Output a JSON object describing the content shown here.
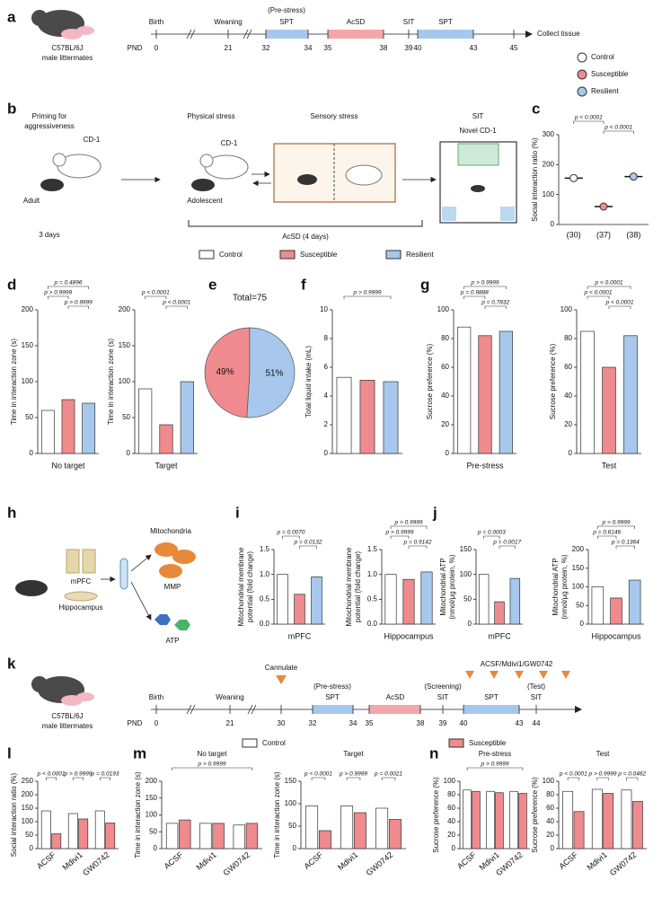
{
  "panel_labels": [
    "a",
    "b",
    "c",
    "d",
    "e",
    "f",
    "g",
    "h",
    "i",
    "j",
    "k",
    "l",
    "m",
    "n"
  ],
  "legend": [
    {
      "name": "Control",
      "color": "#ffffff"
    },
    {
      "name": "Susceptible",
      "color": "#ef8a8e"
    },
    {
      "name": "Resilient",
      "color": "#a7c8ec"
    }
  ],
  "timeline_a": {
    "strain": [
      "C57BL/6J",
      "male littermates"
    ],
    "pnd": "PND",
    "days": [
      "0",
      "21",
      "32",
      "34",
      "35",
      "38",
      "39",
      "40",
      "43",
      "45"
    ],
    "events": [
      "Birth",
      "Weaning",
      "SPT",
      "AcSD",
      "SIT",
      "SPT"
    ],
    "note": "(Pre-stress)",
    "end": "Collect tissue"
  },
  "diagram_b": {
    "priming": [
      "Priming for",
      "aggressiveness"
    ],
    "cd1": "CD-1",
    "adult": "Adult",
    "duration": "3 days",
    "physical": "Physical stress",
    "cd1_physical": "CD-1",
    "adolescent": "Adolescent",
    "sensory": "Sensory stress",
    "sit": "SIT",
    "novel": "Novel CD-1",
    "acsd": "AcSD (4 days)"
  },
  "diagram_h": {
    "mito": "Mitochondria",
    "mpfc": "mPFC",
    "hippo": "Hippocampus",
    "mmp": "MMP",
    "atp": "ATP"
  },
  "timeline_k": {
    "strain": [
      "C57BL/6J",
      "male littermates"
    ],
    "pnd": "PND",
    "days": [
      "0",
      "21",
      "30",
      "32",
      "34",
      "35",
      "38",
      "39",
      "40",
      "43",
      "44"
    ],
    "events": [
      "Birth",
      "Weaning",
      "SPT",
      "AcSD",
      "SIT",
      "SPT",
      "SIT"
    ],
    "notes": [
      "Cannulate",
      "(Pre-stress)",
      "(Screening)",
      "(Test)",
      "ACSF/Mdivi1/GW0742"
    ]
  },
  "chart_data": [
    {
      "type": "dot",
      "ylabel": [
        "Social interaction ratio (%)"
      ],
      "categories": [
        "(30)",
        "(37)",
        "(38)"
      ],
      "values": [
        155,
        60,
        160
      ],
      "colors": [
        "#ffffff",
        "#ef8a8e",
        "#a7c8ec"
      ],
      "ylim": [
        0,
        300
      ],
      "yticks": [
        0,
        100,
        200,
        300
      ],
      "annotations": [
        "p < 0.0001",
        "p < 0.0001"
      ]
    },
    {
      "type": "bar",
      "xlabel": "No target",
      "ylabel": [
        "Time in interaction zone (s)"
      ],
      "categories": [
        null,
        null,
        null
      ],
      "values": [
        60,
        75,
        70
      ],
      "colors": [
        "#ffffff",
        "#ef8a8e",
        "#a7c8ec"
      ],
      "ylim": [
        0,
        200
      ],
      "yticks": [
        0,
        50,
        100,
        150,
        200
      ],
      "annotations": [
        "p = 0.4896",
        "p > 0.9999",
        "p > 0.9999"
      ]
    },
    {
      "type": "bar",
      "xlabel": "Target",
      "ylabel": [
        "Time in interaction zone (s)"
      ],
      "categories": [
        null,
        null,
        null
      ],
      "values": [
        90,
        40,
        100
      ],
      "colors": [
        "#ffffff",
        "#ef8a8e",
        "#a7c8ec"
      ],
      "ylim": [
        0,
        200
      ],
      "yticks": [
        0,
        50,
        100,
        150,
        200
      ],
      "annotations": [
        "p < 0.0001",
        "p < 0.0001"
      ]
    },
    {
      "type": "pie",
      "title": "Total=75",
      "values": [
        49,
        51
      ],
      "value_labels": [
        "49%",
        "51%"
      ],
      "colors": [
        "#ef8a8e",
        "#a7c8ec"
      ]
    },
    {
      "type": "bar",
      "ylabel": [
        "Total liquid intake (mL)"
      ],
      "categories": [
        null,
        null,
        null
      ],
      "values": [
        5.3,
        5.1,
        5.0
      ],
      "colors": [
        "#ffffff",
        "#ef8a8e",
        "#a7c8ec"
      ],
      "ylim": [
        0,
        10
      ],
      "yticks": [
        0,
        2,
        4,
        6,
        8,
        10
      ],
      "annotations": [
        "p > 0.9999"
      ]
    },
    {
      "type": "bar",
      "xlabel": "Pre-stress",
      "ylabel": [
        "Sucrose preference (%)"
      ],
      "categories": [
        null,
        null,
        null
      ],
      "values": [
        88,
        82,
        85
      ],
      "colors": [
        "#ffffff",
        "#ef8a8e",
        "#a7c8ec"
      ],
      "ylim": [
        0,
        100
      ],
      "yticks": [
        0,
        20,
        40,
        60,
        80,
        100
      ],
      "annotations": [
        "p > 0.9999",
        "p = 0.9888",
        "p = 0.7832"
      ]
    },
    {
      "type": "bar",
      "xlabel": "Test",
      "ylabel": [
        "Sucrose preference (%)"
      ],
      "categories": [
        null,
        null,
        null
      ],
      "values": [
        85,
        60,
        82
      ],
      "colors": [
        "#ffffff",
        "#ef8a8e",
        "#a7c8ec"
      ],
      "ylim": [
        0,
        100
      ],
      "yticks": [
        0,
        20,
        40,
        60,
        80,
        100
      ],
      "annotations": [
        "p < 0.0001",
        "p < 0.0001",
        "p < 0.0001"
      ]
    },
    {
      "type": "bar",
      "xlabel": "mPFC",
      "ylabel": [
        "Mitochondrial membrane",
        "potential (fold change)"
      ],
      "categories": [
        null,
        null,
        null
      ],
      "values": [
        1.0,
        0.6,
        0.95
      ],
      "colors": [
        "#ffffff",
        "#ef8a8e",
        "#a7c8ec"
      ],
      "ylim": [
        0,
        1.5
      ],
      "yticks": [
        {
          "value": 0,
          "label": "0.0"
        },
        0.5,
        {
          "value": 1,
          "label": "1.0"
        },
        1.5
      ],
      "annotations": [
        "p = 0.0070",
        "p = 0.0132"
      ]
    },
    {
      "type": "bar",
      "xlabel": "Hippocampus",
      "ylabel": [
        "Mitochondrial membrane",
        "potential (fold change)"
      ],
      "categories": [
        null,
        null,
        null
      ],
      "values": [
        1.0,
        0.9,
        1.05
      ],
      "colors": [
        "#ffffff",
        "#ef8a8e",
        "#a7c8ec"
      ],
      "ylim": [
        0,
        1.5
      ],
      "yticks": [
        {
          "value": 0,
          "label": "0.0"
        },
        0.5,
        {
          "value": 1,
          "label": "1.0"
        },
        1.5
      ],
      "annotations": [
        "p > 0.9999",
        "p > 0.9999",
        "p = 0.9142"
      ]
    },
    {
      "type": "bar",
      "xlabel": "mPFC",
      "ylabel": [
        "Mitochondrial ATP",
        "(nmol/μg protein, %)"
      ],
      "categories": [
        null,
        null,
        null
      ],
      "values": [
        100,
        45,
        92
      ],
      "colors": [
        "#ffffff",
        "#ef8a8e",
        "#a7c8ec"
      ],
      "ylim": [
        0,
        150
      ],
      "yticks": [
        0,
        50,
        100,
        150
      ],
      "annotations": [
        "p = 0.0003",
        "p = 0.0017"
      ]
    },
    {
      "type": "bar",
      "xlabel": "Hippocampus",
      "ylabel": [
        "Mitochondrial ATP",
        "(nmol/μg protein, %)"
      ],
      "categories": [
        null,
        null,
        null
      ],
      "values": [
        100,
        70,
        118
      ],
      "colors": [
        "#ffffff",
        "#ef8a8e",
        "#a7c8ec"
      ],
      "ylim": [
        0,
        200
      ],
      "yticks": [
        0,
        50,
        100,
        150,
        200
      ],
      "annotations": [
        "p > 0.9999",
        "p = 0.6146",
        "p = 0.1364"
      ]
    },
    {
      "type": "grouped_bar",
      "ylabel": [
        "Social interaction ratio (%)"
      ],
      "categories": [
        "ACSF",
        "Mdivi1",
        "GW0742"
      ],
      "series": [
        {
          "name": "Control",
          "color": "#ffffff",
          "values": [
            140,
            130,
            140
          ]
        },
        {
          "name": "Susceptible",
          "color": "#ef8a8e",
          "values": [
            55,
            110,
            95
          ]
        }
      ],
      "ylim": [
        0,
        250
      ],
      "yticks": [
        0,
        50,
        100,
        150,
        200,
        250
      ],
      "annotations": [
        "p < 0.0001",
        "p > 0.9999",
        "p = 0.0193"
      ]
    },
    {
      "type": "grouped_bar",
      "title": "No target",
      "ylabel": [
        "Time in interaction zone (s)"
      ],
      "categories": [
        "ACSF",
        "Mdivi1",
        "GW0742"
      ],
      "series": [
        {
          "name": "Control",
          "color": "#ffffff",
          "values": [
            75,
            75,
            70
          ]
        },
        {
          "name": "Susceptible",
          "color": "#ef8a8e",
          "values": [
            85,
            75,
            75
          ]
        }
      ],
      "ylim": [
        0,
        200
      ],
      "yticks": [
        0,
        50,
        100,
        150,
        200
      ],
      "annotations": [
        "p > 0.9999"
      ]
    },
    {
      "type": "grouped_bar",
      "title": "Target",
      "ylabel": [
        "Time in interaction zone (s)"
      ],
      "categories": [
        "ACSF",
        "Mdivi1",
        "GW0742"
      ],
      "series": [
        {
          "name": "Control",
          "color": "#ffffff",
          "values": [
            95,
            95,
            90
          ]
        },
        {
          "name": "Susceptible",
          "color": "#ef8a8e",
          "values": [
            40,
            80,
            65
          ]
        }
      ],
      "ylim": [
        0,
        150
      ],
      "yticks": [
        0,
        50,
        100,
        150
      ],
      "annotations": [
        "p < 0.0001",
        "p > 0.9999",
        "p = 0.0021"
      ]
    },
    {
      "type": "grouped_bar",
      "title": "Pre-stress",
      "ylabel": [
        "Sucrose preference (%)"
      ],
      "categories": [
        "ACSF",
        "Mdivi1",
        "GW0742"
      ],
      "series": [
        {
          "name": "Control",
          "color": "#ffffff",
          "values": [
            87,
            85,
            85
          ]
        },
        {
          "name": "Susceptible",
          "color": "#ef8a8e",
          "values": [
            85,
            83,
            82
          ]
        }
      ],
      "ylim": [
        0,
        100
      ],
      "yticks": [
        0,
        20,
        40,
        60,
        80,
        100
      ],
      "annotations": [
        "p > 0.9999"
      ]
    },
    {
      "type": "grouped_bar",
      "title": "Test",
      "ylabel": [
        "Sucrose preference (%)"
      ],
      "categories": [
        "ACSF",
        "Mdivi1",
        "GW0742"
      ],
      "series": [
        {
          "name": "Control",
          "color": "#ffffff",
          "values": [
            85,
            88,
            87
          ]
        },
        {
          "name": "Susceptible",
          "color": "#ef8a8e",
          "values": [
            55,
            82,
            70
          ]
        }
      ],
      "ylim": [
        0,
        100
      ],
      "yticks": [
        0,
        20,
        40,
        60,
        80,
        100
      ],
      "annotations": [
        "p < 0.0001",
        "p > 0.9999",
        "p = 0.0462"
      ]
    }
  ]
}
